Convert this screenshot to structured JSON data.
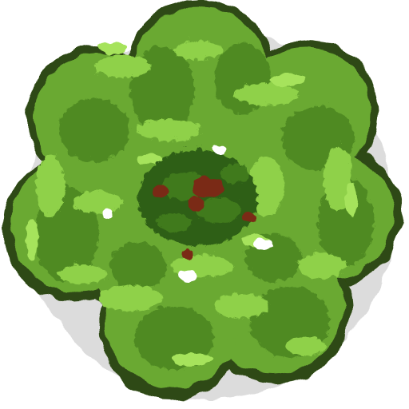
{
  "image": {
    "subject": "lettuce-head-top-down-sprite",
    "background": "#ffffff"
  },
  "palette": {
    "outline": "#2f4a12",
    "shadow": "#3d6a1a",
    "dark_green": "#4f8a24",
    "mid_green": "#6aa932",
    "light_green": "#8fd14a",
    "highlight_green": "#a6e35c",
    "core_dark": "#2e5f14",
    "core_mid": "#3f7a1c",
    "core_brown": "#7a2a12",
    "drop_shadow": "#9a9a9a"
  }
}
